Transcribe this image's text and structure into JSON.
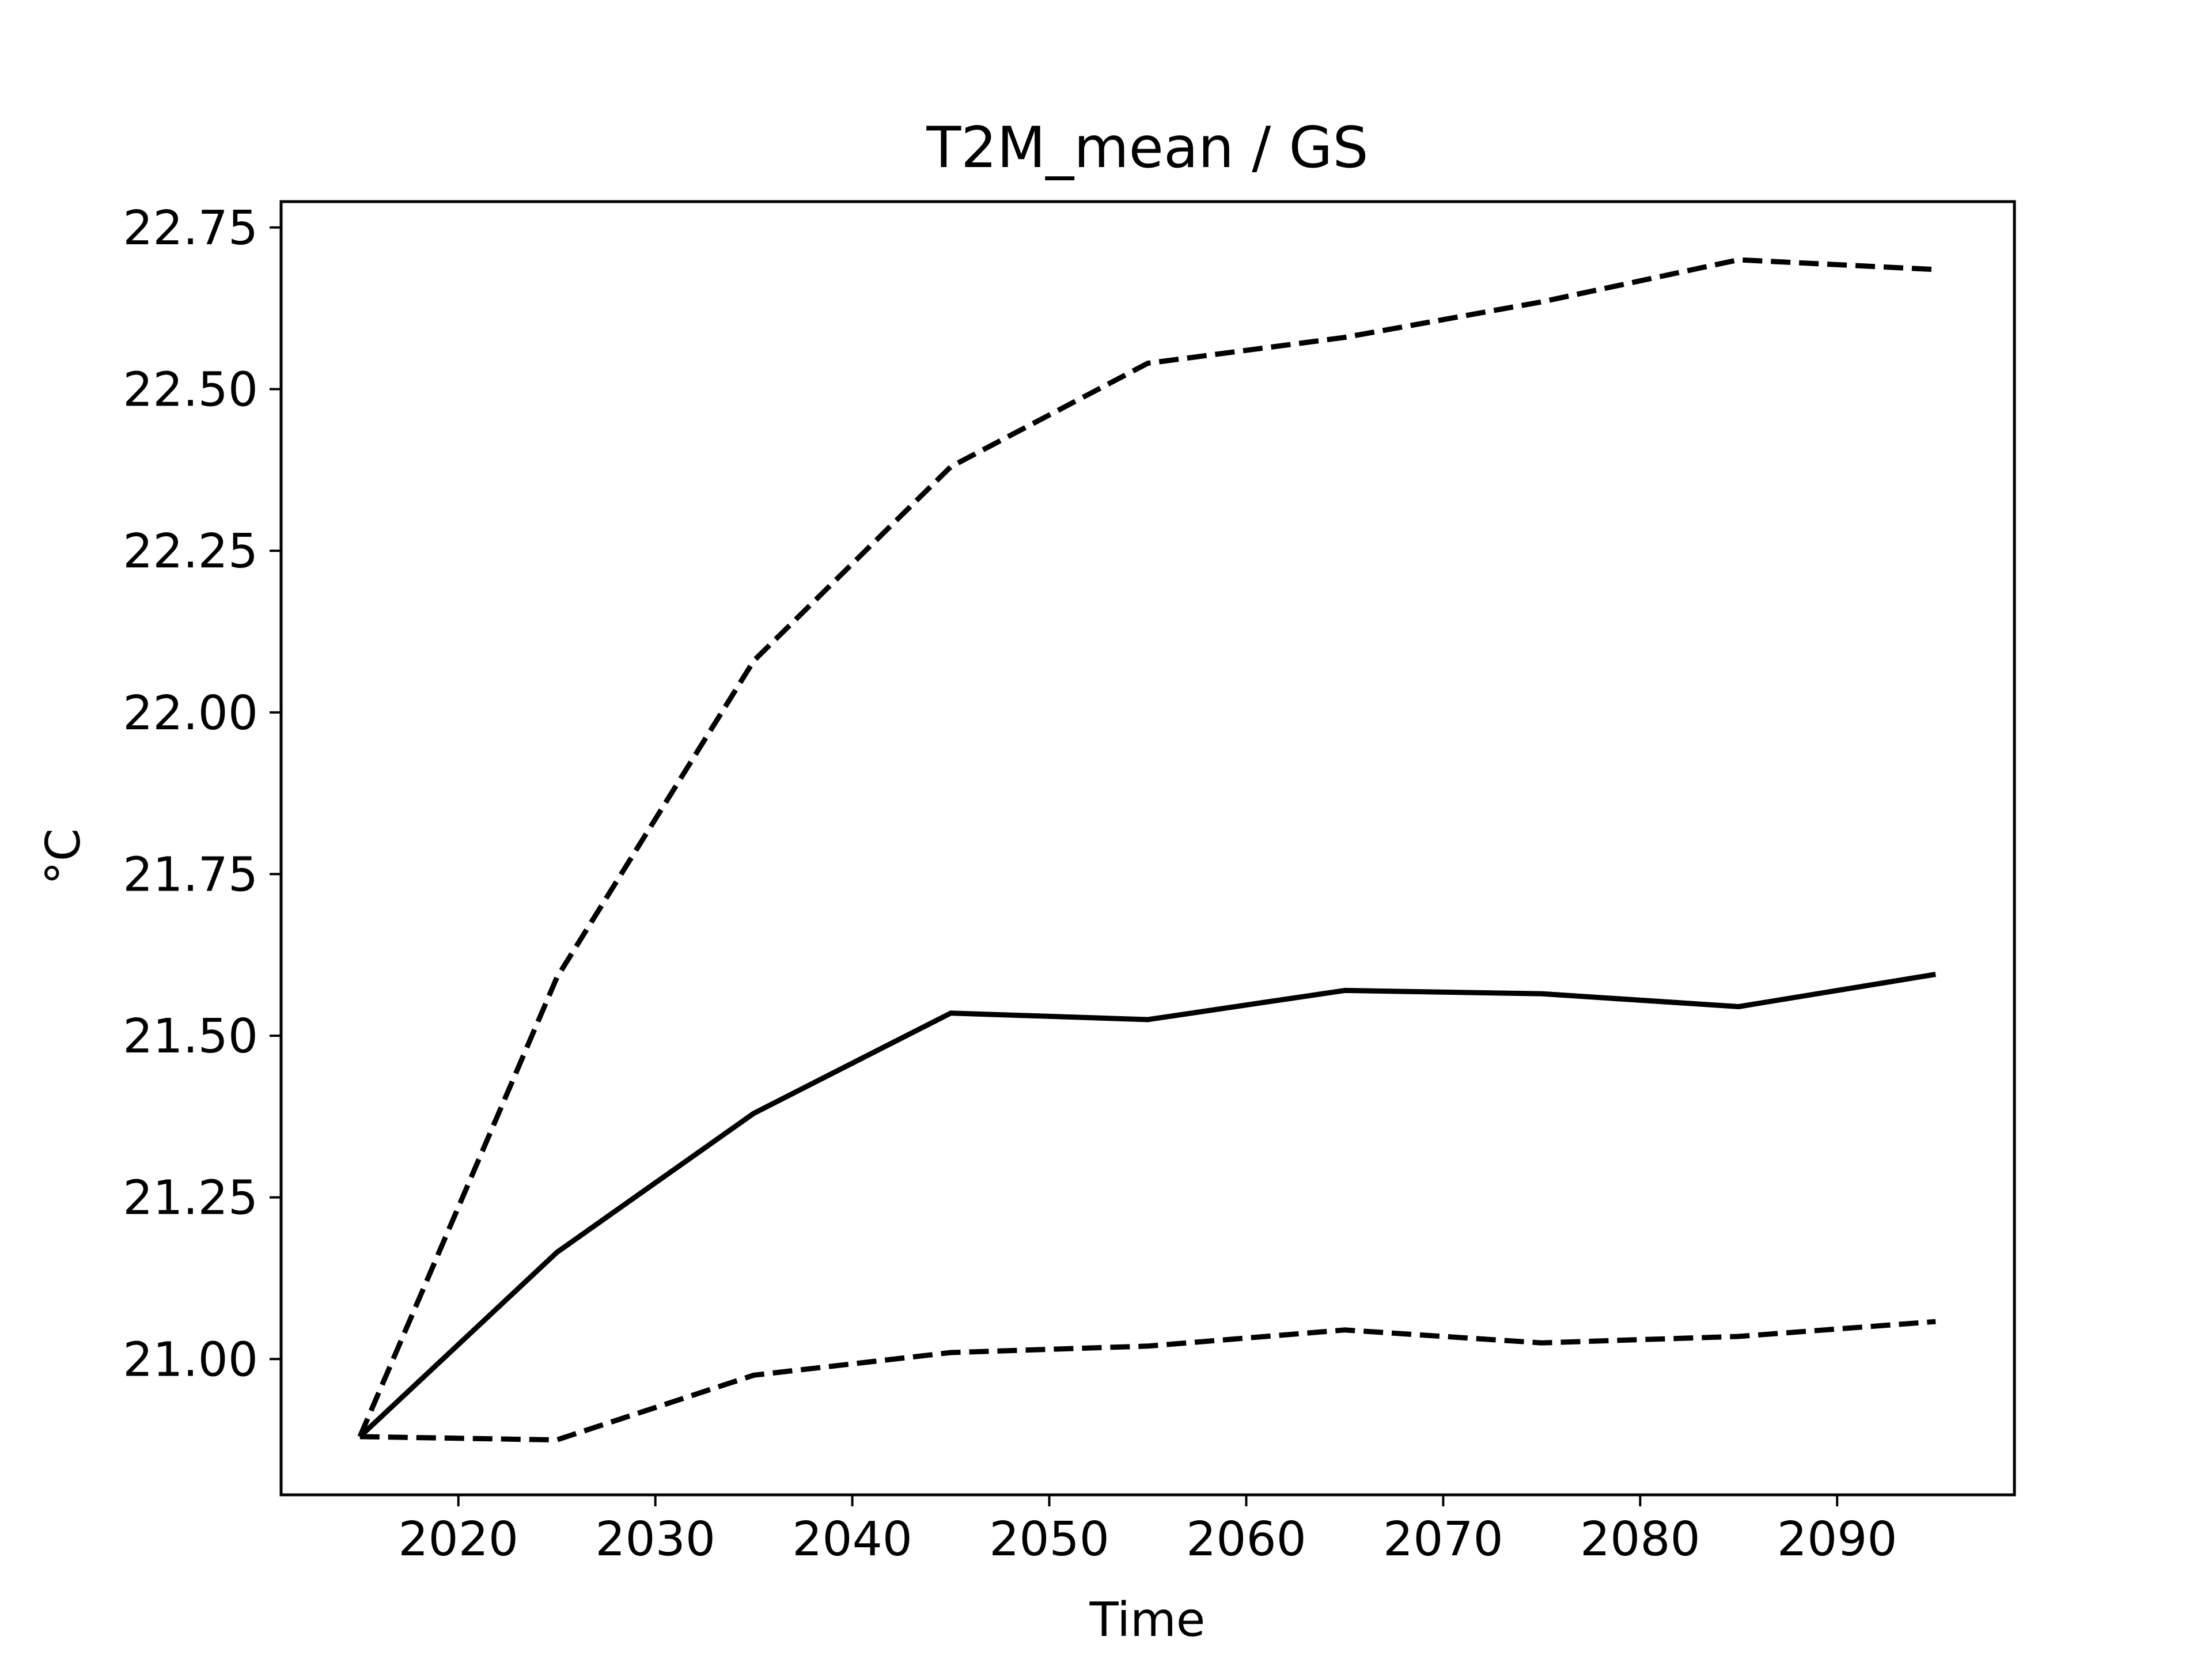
{
  "chart_data": {
    "type": "line",
    "title": "T2M_mean / GS",
    "xlabel": "Time",
    "ylabel": "°C",
    "xlim": [
      2011,
      2099
    ],
    "ylim": [
      20.79,
      22.79
    ],
    "xticks": [
      2020,
      2030,
      2040,
      2050,
      2060,
      2070,
      2080,
      2090
    ],
    "xtick_labels": [
      "2020",
      "2030",
      "2040",
      "2050",
      "2060",
      "2070",
      "2080",
      "2090"
    ],
    "yticks": [
      21.0,
      21.25,
      21.5,
      21.75,
      22.0,
      22.25,
      22.5,
      22.75
    ],
    "ytick_labels": [
      "21.00",
      "21.25",
      "21.50",
      "21.75",
      "22.00",
      "22.25",
      "22.50",
      "22.75"
    ],
    "grid": false,
    "x": [
      2015,
      2025,
      2035,
      2045,
      2055,
      2065,
      2075,
      2085,
      2095
    ],
    "series": [
      {
        "style": "dashed",
        "color": "#000000",
        "values": [
          20.88,
          21.59,
          22.08,
          22.38,
          22.54,
          22.58,
          22.635,
          22.7,
          22.685
        ]
      },
      {
        "style": "solid",
        "color": "#000000",
        "values": [
          20.88,
          21.165,
          21.38,
          21.535,
          21.525,
          21.57,
          21.565,
          21.545,
          21.595
        ]
      },
      {
        "style": "dashed",
        "color": "#000000",
        "values": [
          20.88,
          20.875,
          20.975,
          21.01,
          21.02,
          21.045,
          21.025,
          21.035,
          21.058
        ]
      }
    ]
  }
}
